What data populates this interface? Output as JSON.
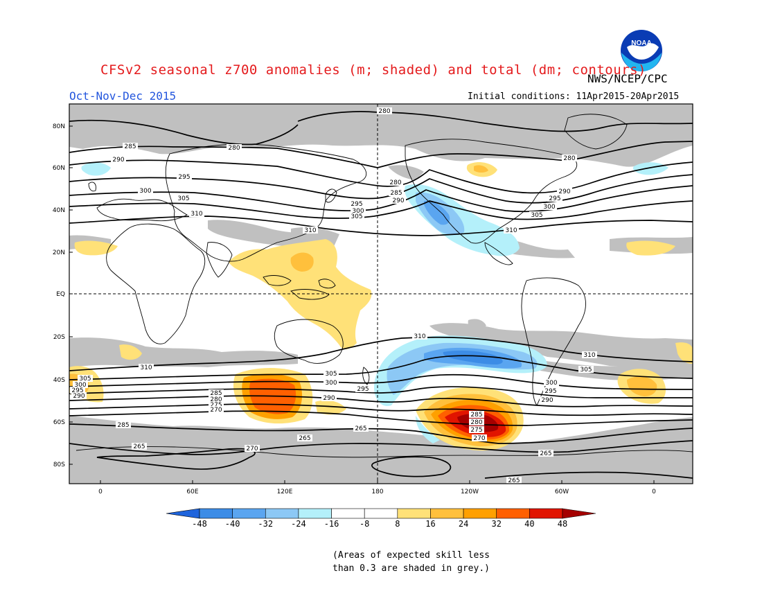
{
  "header": {
    "title": "CFSv2 seasonal z700 anomalies (m; shaded) and total (dm; contours)",
    "agency": "NWS/NCEP/CPC",
    "season": "Oct-Nov-Dec 2015",
    "initial_conditions": "Initial conditions: 11Apr2015-20Apr2015",
    "logo_text": "NOAA"
  },
  "map": {
    "lat_labels": [
      "80N",
      "60N",
      "40N",
      "20N",
      "EQ",
      "20S",
      "40S",
      "60S",
      "80S"
    ],
    "lon_labels": [
      "0",
      "60E",
      "120E",
      "180",
      "120W",
      "60W",
      "0"
    ],
    "colors": {
      "grey_mask": "#c0c0c0",
      "land_outline": "#000000",
      "contour": "#000000"
    },
    "contour_labels": [
      {
        "text": "280"
      },
      {
        "text": "280"
      },
      {
        "text": "280"
      },
      {
        "text": "280"
      },
      {
        "text": "285"
      },
      {
        "text": "285"
      },
      {
        "text": "290"
      },
      {
        "text": "290"
      },
      {
        "text": "290"
      },
      {
        "text": "295"
      },
      {
        "text": "295"
      },
      {
        "text": "295"
      },
      {
        "text": "300"
      },
      {
        "text": "300"
      },
      {
        "text": "300"
      },
      {
        "text": "305"
      },
      {
        "text": "305"
      },
      {
        "text": "305"
      },
      {
        "text": "310"
      },
      {
        "text": "310"
      },
      {
        "text": "310"
      },
      {
        "text": "310"
      },
      {
        "text": "310"
      },
      {
        "text": "310"
      },
      {
        "text": "305"
      },
      {
        "text": "300"
      },
      {
        "text": "295"
      },
      {
        "text": "290"
      },
      {
        "text": "305"
      },
      {
        "text": "300"
      },
      {
        "text": "295"
      },
      {
        "text": "290"
      },
      {
        "text": "305"
      },
      {
        "text": "300"
      },
      {
        "text": "295"
      },
      {
        "text": "290"
      },
      {
        "text": "285"
      },
      {
        "text": "280"
      },
      {
        "text": "275"
      },
      {
        "text": "270"
      },
      {
        "text": "285"
      },
      {
        "text": "280"
      },
      {
        "text": "275"
      },
      {
        "text": "270"
      },
      {
        "text": "285"
      },
      {
        "text": "265"
      },
      {
        "text": "265"
      },
      {
        "text": "265"
      },
      {
        "text": "265"
      },
      {
        "text": "265"
      },
      {
        "text": "270"
      },
      {
        "text": "265"
      }
    ]
  },
  "colorbar": {
    "ticks": [
      "-48",
      "-40",
      "-32",
      "-24",
      "-16",
      "-8",
      "8",
      "16",
      "24",
      "32",
      "40",
      "48"
    ],
    "colors": [
      "#1e64dc",
      "#3c8ce6",
      "#5aa5f0",
      "#8cc8f5",
      "#b4f0fa",
      "#ffffff",
      "#ffe178",
      "#ffc03c",
      "#ffa000",
      "#ff6000",
      "#e11400",
      "#a50000"
    ]
  },
  "note": {
    "line1": "(Areas of expected skill less",
    "line2": "than 0.3 are shaded in grey.)"
  }
}
